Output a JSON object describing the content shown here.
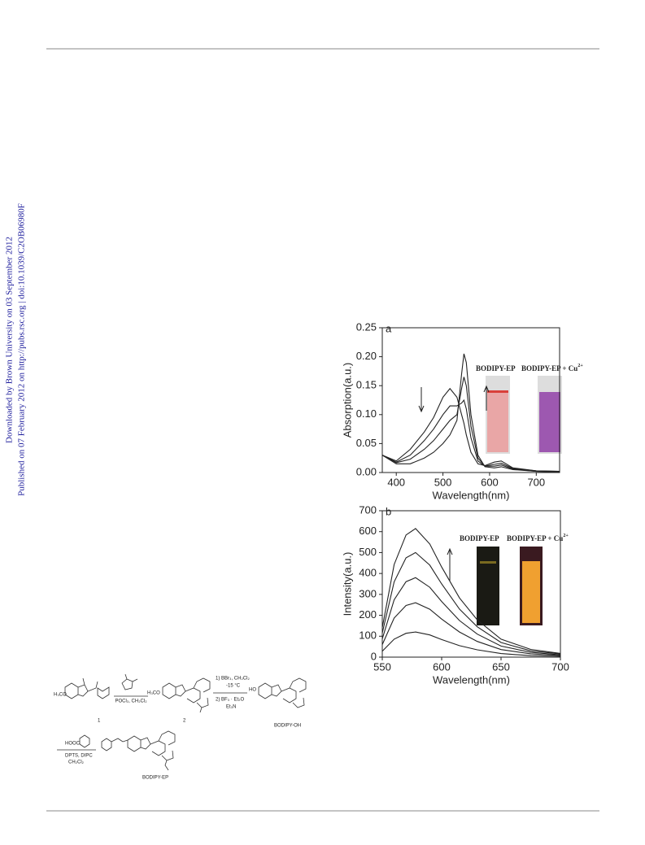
{
  "side_notes": {
    "downloaded": "Downloaded by Brown University on 03 September 2012",
    "published": "Published on 07 February 2012 on http://pubs.rsc.org | doi:10.1039/C2OB06980F"
  },
  "chart_data": [
    {
      "type": "line",
      "panel_label": "a",
      "x_label": "Wavelength(nm)",
      "y_label": "Absorption(a.u.)",
      "x": [
        370,
        400,
        430,
        460,
        480,
        500,
        515,
        530,
        540,
        545,
        550,
        560,
        575,
        590,
        610,
        625,
        650,
        700,
        750
      ],
      "series": [
        {
          "color": "#222222",
          "values": [
            0.03,
            0.015,
            0.015,
            0.025,
            0.035,
            0.05,
            0.065,
            0.09,
            0.17,
            0.205,
            0.19,
            0.1,
            0.03,
            0.01,
            0.008,
            0.01,
            0.005,
            0.002,
            0.001
          ]
        },
        {
          "color": "#222222",
          "values": [
            0.03,
            0.017,
            0.023,
            0.04,
            0.055,
            0.075,
            0.09,
            0.1,
            0.145,
            0.165,
            0.15,
            0.08,
            0.025,
            0.011,
            0.011,
            0.013,
            0.006,
            0.002,
            0.001
          ]
        },
        {
          "color": "#222222",
          "values": [
            0.03,
            0.018,
            0.03,
            0.055,
            0.075,
            0.1,
            0.115,
            0.115,
            0.12,
            0.125,
            0.11,
            0.06,
            0.02,
            0.011,
            0.014,
            0.016,
            0.007,
            0.003,
            0.002
          ]
        },
        {
          "color": "#222222",
          "values": [
            0.03,
            0.02,
            0.04,
            0.07,
            0.095,
            0.13,
            0.145,
            0.13,
            0.1,
            0.085,
            0.065,
            0.035,
            0.015,
            0.012,
            0.018,
            0.02,
            0.008,
            0.003,
            0.002
          ]
        }
      ],
      "xlim": [
        370,
        750
      ],
      "ylim": [
        0,
        0.25
      ],
      "xticks": [
        400,
        500,
        600,
        700
      ],
      "yticks": [
        {
          "value": 0,
          "label": "0.00"
        },
        {
          "value": 0.05,
          "label": "0.05"
        },
        {
          "value": 0.1,
          "label": "0.10"
        },
        {
          "value": 0.15,
          "label": "0.15"
        },
        {
          "value": 0.2,
          "label": "0.20"
        },
        {
          "value": 0.25,
          "label": "0.25"
        }
      ],
      "inset_labels": [
        "BODIPY-EP",
        "BODIPY-EP + Cu",
        "2+"
      ]
    },
    {
      "type": "line",
      "panel_label": "b",
      "x_label": "Wavelength(nm)",
      "y_label": "Intensity(a.u.)",
      "x": [
        550,
        560,
        570,
        578,
        590,
        600,
        615,
        630,
        650,
        675,
        700
      ],
      "series": [
        {
          "color": "#222222",
          "values": [
            141,
            443,
            584,
            615,
            541,
            431,
            283,
            178,
            86,
            37,
            18
          ]
        },
        {
          "color": "#222222",
          "values": [
            115,
            360,
            475,
            500,
            440,
            350,
            230,
            145,
            70,
            30,
            15
          ]
        },
        {
          "color": "#222222",
          "values": [
            87,
            274,
            361,
            380,
            334,
            266,
            175,
            110,
            53,
            23,
            11
          ]
        },
        {
          "color": "#222222",
          "values": [
            60,
            187,
            247,
            260,
            229,
            182,
            120,
            75,
            36,
            16,
            8
          ]
        },
        {
          "color": "#222222",
          "values": [
            28,
            86,
            114,
            120,
            106,
            84,
            55,
            35,
            17,
            7,
            4
          ]
        }
      ],
      "xlim": [
        550,
        700
      ],
      "ylim": [
        0,
        700
      ],
      "xticks": [
        550,
        600,
        650,
        700
      ],
      "yticks": [
        0,
        100,
        200,
        300,
        400,
        500,
        600,
        700
      ],
      "inset_labels": [
        "BODIPY-EP",
        "BODIPY-EP + Cu",
        "2+"
      ]
    }
  ],
  "scheme": {
    "methoxy": "H₃CO",
    "reagent_1": "POCl₃, CH₂Cl₂",
    "methoxy_2": "H₃CO",
    "step_2a": "1) BBr₃, CH₂Cl₂",
    "step_2b": "-15 °C",
    "step_2c": "2) BF₃ · Et₂O",
    "step_2d": "Et₃N",
    "hydroxy": "HO",
    "label_1": "1",
    "label_2": "2",
    "label_oh": "BODIPY-OH",
    "acid": "HOOC",
    "step_3a": "DPTS, DIPC",
    "step_3b": "CH₂Cl₂",
    "label_ep": "BODIPY-EP"
  }
}
